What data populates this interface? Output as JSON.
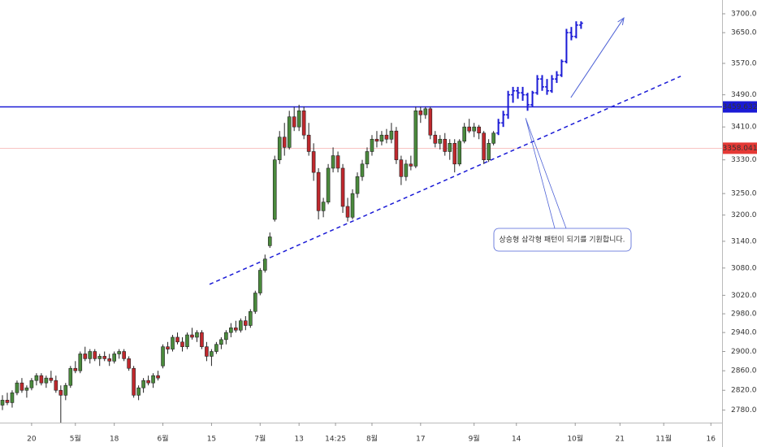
{
  "chart_data": {
    "type": "candlestick",
    "log_scale": true,
    "grid": false,
    "xlim": [
      -0.5,
      148
    ],
    "ylim": [
      2755,
      3737
    ],
    "xticks": [
      {
        "value": 6,
        "label": "20"
      },
      {
        "value": 15,
        "label": "5월"
      },
      {
        "value": 23,
        "label": "18"
      },
      {
        "value": 33,
        "label": "6월"
      },
      {
        "value": 43,
        "label": "15"
      },
      {
        "value": 53,
        "label": "7월"
      },
      {
        "value": 61,
        "label": "13"
      },
      {
        "value": 68.5,
        "label": "14:25"
      },
      {
        "value": 76,
        "label": "8월"
      },
      {
        "value": 86,
        "label": "17"
      },
      {
        "value": 97,
        "label": "9월"
      },
      {
        "value": 105.7,
        "label": "14"
      },
      {
        "value": 117.8,
        "label": "10월"
      },
      {
        "value": 127,
        "label": "21"
      },
      {
        "value": 136,
        "label": "11월"
      },
      {
        "value": 145.7,
        "label": "16"
      }
    ],
    "yticks": [
      {
        "value": 2780,
        "label": "2780.000"
      },
      {
        "value": 2820,
        "label": "2820.000"
      },
      {
        "value": 2860,
        "label": "2860.000"
      },
      {
        "value": 2900,
        "label": "2900.000"
      },
      {
        "value": 2940,
        "label": "2940.000"
      },
      {
        "value": 2980,
        "label": "2980.000"
      },
      {
        "value": 3020,
        "label": "3020.000"
      },
      {
        "value": 3080,
        "label": "3080.000"
      },
      {
        "value": 3140,
        "label": "3140.000"
      },
      {
        "value": 3200,
        "label": "3200.000"
      },
      {
        "value": 3250,
        "label": "3250.000"
      },
      {
        "value": 3330,
        "label": "3330.000"
      },
      {
        "value": 3410,
        "label": "3410.000"
      },
      {
        "value": 3490,
        "label": "3490.000"
      },
      {
        "value": 3570,
        "label": "3570.000"
      },
      {
        "value": 3650,
        "label": "3650.000"
      },
      {
        "value": 3700,
        "label": "3700.000"
      }
    ],
    "series": [
      {
        "style": "candle",
        "start": 0,
        "color_up": "#4a8a3c",
        "color_down": "#c0282d",
        "ohlc": [
          [
            2790,
            2810,
            2780,
            2800
          ],
          [
            2800,
            2815,
            2790,
            2795
          ],
          [
            2795,
            2820,
            2785,
            2815
          ],
          [
            2815,
            2840,
            2810,
            2835
          ],
          [
            2835,
            2845,
            2815,
            2820
          ],
          [
            2820,
            2830,
            2805,
            2825
          ],
          [
            2825,
            2845,
            2820,
            2840
          ],
          [
            2840,
            2855,
            2830,
            2850
          ],
          [
            2850,
            2855,
            2830,
            2835
          ],
          [
            2835,
            2850,
            2825,
            2845
          ],
          [
            2845,
            2860,
            2835,
            2840
          ],
          [
            2840,
            2850,
            2815,
            2820
          ],
          [
            2820,
            2830,
            2745,
            2810
          ],
          [
            2810,
            2835,
            2800,
            2830
          ],
          [
            2830,
            2870,
            2825,
            2865
          ],
          [
            2865,
            2880,
            2855,
            2860
          ],
          [
            2860,
            2900,
            2855,
            2895
          ],
          [
            2895,
            2910,
            2880,
            2885
          ],
          [
            2885,
            2905,
            2875,
            2900
          ],
          [
            2900,
            2905,
            2880,
            2885
          ],
          [
            2885,
            2895,
            2870,
            2890
          ],
          [
            2890,
            2900,
            2880,
            2885
          ],
          [
            2885,
            2895,
            2870,
            2880
          ],
          [
            2880,
            2900,
            2875,
            2895
          ],
          [
            2895,
            2905,
            2885,
            2900
          ],
          [
            2900,
            2905,
            2880,
            2885
          ],
          [
            2885,
            2890,
            2860,
            2865
          ],
          [
            2865,
            2870,
            2805,
            2810
          ],
          [
            2810,
            2830,
            2800,
            2825
          ],
          [
            2825,
            2845,
            2815,
            2840
          ],
          [
            2840,
            2850,
            2830,
            2835
          ],
          [
            2835,
            2855,
            2825,
            2850
          ],
          [
            2850,
            2860,
            2840,
            2845
          ],
          [
            2870,
            2915,
            2865,
            2910
          ],
          [
            2910,
            2920,
            2895,
            2905
          ],
          [
            2905,
            2935,
            2900,
            2930
          ],
          [
            2930,
            2940,
            2915,
            2920
          ],
          [
            2920,
            2930,
            2900,
            2910
          ],
          [
            2910,
            2940,
            2905,
            2935
          ],
          [
            2935,
            2950,
            2925,
            2930
          ],
          [
            2930,
            2945,
            2920,
            2940
          ],
          [
            2940,
            2945,
            2905,
            2910
          ],
          [
            2910,
            2920,
            2880,
            2890
          ],
          [
            2890,
            2905,
            2870,
            2900
          ],
          [
            2900,
            2920,
            2895,
            2915
          ],
          [
            2915,
            2930,
            2905,
            2925
          ],
          [
            2925,
            2945,
            2915,
            2940
          ],
          [
            2940,
            2960,
            2930,
            2950
          ],
          [
            2950,
            2965,
            2940,
            2945
          ],
          [
            2945,
            2970,
            2940,
            2965
          ],
          [
            2965,
            2975,
            2945,
            2955
          ],
          [
            2955,
            2990,
            2950,
            2985
          ],
          [
            2985,
            3030,
            2980,
            3025
          ],
          [
            3025,
            3080,
            3020,
            3075
          ],
          [
            3075,
            3110,
            3070,
            3100
          ],
          [
            3130,
            3160,
            3125,
            3150
          ],
          [
            3190,
            3340,
            3185,
            3330
          ],
          [
            3330,
            3400,
            3320,
            3385
          ],
          [
            3385,
            3420,
            3340,
            3360
          ],
          [
            3360,
            3450,
            3355,
            3435
          ],
          [
            3435,
            3460,
            3400,
            3410
          ],
          [
            3410,
            3465,
            3400,
            3450
          ],
          [
            3450,
            3460,
            3380,
            3390
          ],
          [
            3390,
            3420,
            3340,
            3350
          ],
          [
            3350,
            3370,
            3280,
            3300
          ],
          [
            3300,
            3310,
            3190,
            3210
          ],
          [
            3210,
            3240,
            3195,
            3230
          ],
          [
            3230,
            3320,
            3225,
            3310
          ],
          [
            3310,
            3360,
            3300,
            3340
          ],
          [
            3340,
            3350,
            3300,
            3310
          ],
          [
            3310,
            3320,
            3205,
            3220
          ],
          [
            3220,
            3240,
            3185,
            3195
          ],
          [
            3195,
            3260,
            3190,
            3250
          ],
          [
            3250,
            3300,
            3240,
            3290
          ],
          [
            3290,
            3330,
            3280,
            3320
          ],
          [
            3320,
            3360,
            3310,
            3350
          ],
          [
            3350,
            3390,
            3340,
            3380
          ],
          [
            3380,
            3400,
            3360,
            3375
          ],
          [
            3375,
            3400,
            3365,
            3390
          ],
          [
            3390,
            3405,
            3370,
            3380
          ],
          [
            3380,
            3420,
            3370,
            3400
          ],
          [
            3400,
            3410,
            3320,
            3330
          ],
          [
            3330,
            3340,
            3270,
            3290
          ],
          [
            3290,
            3330,
            3280,
            3320
          ],
          [
            3320,
            3340,
            3305,
            3315
          ],
          [
            3315,
            3460,
            3310,
            3450
          ],
          [
            3450,
            3460,
            3420,
            3440
          ],
          [
            3440,
            3460,
            3430,
            3455
          ],
          [
            3455,
            3460,
            3380,
            3390
          ],
          [
            3390,
            3400,
            3360,
            3370
          ],
          [
            3370,
            3390,
            3355,
            3380
          ],
          [
            3380,
            3395,
            3340,
            3350
          ],
          [
            3350,
            3380,
            3330,
            3370
          ],
          [
            3370,
            3380,
            3300,
            3320
          ],
          [
            3320,
            3380,
            3315,
            3375
          ],
          [
            3375,
            3420,
            3370,
            3410
          ],
          [
            3410,
            3430,
            3395,
            3400
          ],
          [
            3400,
            3420,
            3385,
            3410
          ],
          [
            3410,
            3415,
            3380,
            3395
          ],
          [
            3395,
            3400,
            3320,
            3330
          ],
          [
            3330,
            3380,
            3325,
            3370
          ],
          [
            3370,
            3400,
            3365,
            3395
          ]
        ]
      },
      {
        "style": "ohlc-bar",
        "start": 102,
        "color": "#1a1ad6",
        "ohlc": [
          [
            3395,
            3430,
            3390,
            3420
          ],
          [
            3420,
            3450,
            3410,
            3440
          ],
          [
            3440,
            3500,
            3430,
            3490
          ],
          [
            3490,
            3510,
            3470,
            3500
          ],
          [
            3500,
            3510,
            3480,
            3495
          ],
          [
            3495,
            3510,
            3475,
            3490
          ],
          [
            3490,
            3495,
            3450,
            3465
          ],
          [
            3465,
            3500,
            3460,
            3495
          ],
          [
            3495,
            3540,
            3490,
            3530
          ],
          [
            3530,
            3540,
            3500,
            3510
          ],
          [
            3510,
            3530,
            3490,
            3500
          ],
          [
            3500,
            3540,
            3495,
            3530
          ],
          [
            3530,
            3550,
            3520,
            3540
          ],
          [
            3540,
            3580,
            3535,
            3575
          ],
          [
            3575,
            3660,
            3570,
            3650
          ],
          [
            3650,
            3665,
            3630,
            3640
          ],
          [
            3640,
            3680,
            3635,
            3670
          ],
          [
            3670,
            3680,
            3660,
            3675
          ]
        ]
      }
    ],
    "hlines": [
      {
        "value": 3459.632,
        "color": "#1a1ad6"
      },
      {
        "value": 3358.041,
        "color": "#e53935"
      }
    ],
    "trendline": {
      "x": [
        42.6,
        139.5
      ],
      "y": [
        3044,
        3537
      ],
      "color": "#1a1ad6"
    },
    "arrow": {
      "x": [
        116.9,
        127.8
      ],
      "y": [
        3483,
        3689
      ],
      "color": "#4f63d6"
    },
    "callout": {
      "text": "상승형 삼각형 패턴이 되기를 기원합니다.",
      "x": 107.6,
      "y": 3432,
      "color": "#4f63d6"
    }
  }
}
